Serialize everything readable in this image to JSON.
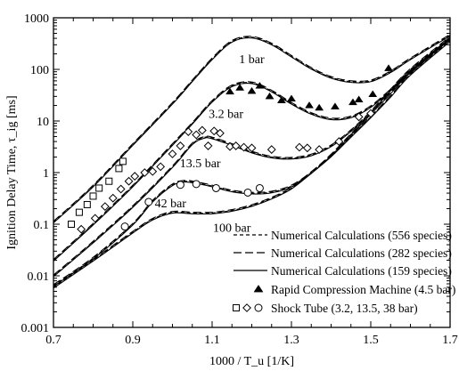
{
  "chart_data": {
    "type": "line",
    "xlabel": "1000 / T_u  [1/K]",
    "ylabel": "Ignition Delay Time, τ_ig [ms]",
    "xlim": [
      0.7,
      1.7
    ],
    "ylim": [
      0.001,
      1000
    ],
    "yscale": "log",
    "grid": false,
    "legend_position": "bottom-right",
    "x_ticks": [
      "0.7",
      "0.9",
      "1.1",
      "1.3",
      "1.5",
      "1.7"
    ],
    "x_tick_values": [
      0.7,
      0.9,
      1.1,
      1.3,
      1.5,
      1.7
    ],
    "y_ticks": [
      "0.001",
      "0.01",
      "0.1",
      "1",
      "10",
      "100",
      "1000"
    ],
    "y_tick_values": [
      0.001,
      0.01,
      0.1,
      1,
      10,
      100,
      1000
    ],
    "legend": [
      {
        "label": "Numerical Calculations (556 species)",
        "style": "short-dash"
      },
      {
        "label": "Numerical Calculations (282 species)",
        "style": "long-dash"
      },
      {
        "label": "Numerical Calculations (159 species)",
        "style": "solid"
      },
      {
        "label": "Rapid Compression Machine (4.5 bar)",
        "style": "filled-triangle"
      },
      {
        "label": "Shock Tube (3.2, 13.5, 38 bar)",
        "style": "open-square-diamond-circle"
      }
    ],
    "curves": [
      {
        "label": "1 bar",
        "label_at": [
          1.2,
          160
        ],
        "x": [
          0.7,
          0.8,
          0.9,
          1.0,
          1.05,
          1.1,
          1.15,
          1.2,
          1.25,
          1.3,
          1.35,
          1.4,
          1.45,
          1.5,
          1.55,
          1.6,
          1.7
        ],
        "y": [
          0.11,
          0.55,
          3.5,
          22,
          60,
          160,
          350,
          420,
          310,
          180,
          105,
          70,
          58,
          60,
          90,
          160,
          460
        ]
      },
      {
        "label": "3.2 bar",
        "label_at": [
          1.135,
          14
        ],
        "x": [
          0.7,
          0.8,
          0.9,
          1.0,
          1.05,
          1.1,
          1.15,
          1.2,
          1.25,
          1.3,
          1.35,
          1.4,
          1.45,
          1.5,
          1.55,
          1.6,
          1.7
        ],
        "y": [
          0.02,
          0.1,
          0.55,
          3.5,
          9,
          24,
          48,
          55,
          38,
          22,
          14,
          11,
          12,
          19,
          40,
          90,
          400
        ]
      },
      {
        "label": "13.5 bar",
        "label_at": [
          1.07,
          1.55
        ],
        "x": [
          0.7,
          0.8,
          0.9,
          1.0,
          1.05,
          1.08,
          1.1,
          1.15,
          1.2,
          1.25,
          1.3,
          1.35,
          1.4,
          1.45,
          1.5,
          1.55,
          1.6,
          1.7
        ],
        "y": [
          0.01,
          0.045,
          0.22,
          1.3,
          3.6,
          4.8,
          4.7,
          3.5,
          2.5,
          2.0,
          1.9,
          2.2,
          3.3,
          6.5,
          15,
          40,
          100,
          420
        ]
      },
      {
        "label": "42 bar",
        "label_at": [
          0.995,
          0.26
        ],
        "x": [
          0.7,
          0.8,
          0.9,
          0.95,
          1.0,
          1.03,
          1.06,
          1.1,
          1.15,
          1.2,
          1.25,
          1.3,
          1.35,
          1.4,
          1.45,
          1.5,
          1.55,
          1.6,
          1.7
        ],
        "y": [
          0.0065,
          0.022,
          0.1,
          0.28,
          0.58,
          0.68,
          0.64,
          0.55,
          0.44,
          0.4,
          0.42,
          0.55,
          1.0,
          2.2,
          5.5,
          14,
          35,
          90,
          390
        ]
      },
      {
        "label": "100 bar",
        "label_at": [
          1.15,
          0.087
        ],
        "x": [
          0.7,
          0.8,
          0.9,
          0.95,
          1.0,
          1.05,
          1.1,
          1.15,
          1.2,
          1.25,
          1.3,
          1.35,
          1.4,
          1.45,
          1.5,
          1.55,
          1.6,
          1.7
        ],
        "y": [
          0.006,
          0.02,
          0.07,
          0.125,
          0.17,
          0.165,
          0.165,
          0.185,
          0.23,
          0.32,
          0.5,
          1.0,
          2.1,
          5,
          12,
          30,
          80,
          360
        ]
      }
    ],
    "rcm_points": {
      "x": [
        1.145,
        1.17,
        1.2,
        1.22,
        1.245,
        1.275,
        1.3,
        1.345,
        1.37,
        1.41,
        1.455,
        1.47,
        1.505,
        1.545
      ],
      "y": [
        37,
        44,
        38,
        48,
        30,
        25,
        27,
        20,
        18,
        19,
        23,
        26,
        33,
        105
      ]
    },
    "shock_squares": {
      "x": [
        0.745,
        0.765,
        0.785,
        0.8,
        0.815,
        0.84,
        0.865,
        0.875
      ],
      "y": [
        0.1,
        0.17,
        0.24,
        0.35,
        0.5,
        0.68,
        1.2,
        1.65
      ]
    },
    "shock_diamonds": {
      "x": [
        0.77,
        0.805,
        0.83,
        0.85,
        0.87,
        0.89,
        0.905,
        0.93,
        0.95,
        0.97,
        1.0,
        1.02,
        1.04,
        1.06,
        1.075,
        1.09,
        1.105,
        1.12,
        1.145,
        1.16,
        1.18,
        1.2,
        1.25,
        1.32,
        1.34,
        1.37,
        1.42,
        1.47,
        1.5
      ],
      "y": [
        0.08,
        0.13,
        0.22,
        0.32,
        0.48,
        0.68,
        0.85,
        1.0,
        1.05,
        1.3,
        2.3,
        3.3,
        6.2,
        5.4,
        6.6,
        3.3,
        6.4,
        5.8,
        3.2,
        3.3,
        3.1,
        3.0,
        2.8,
        3.1,
        3.0,
        2.8,
        4.0,
        12,
        14
      ]
    },
    "shock_circles": {
      "x": [
        0.88,
        0.94,
        1.02,
        1.06,
        1.11,
        1.19,
        1.22
      ],
      "y": [
        0.09,
        0.27,
        0.58,
        0.6,
        0.5,
        0.41,
        0.5
      ]
    }
  }
}
